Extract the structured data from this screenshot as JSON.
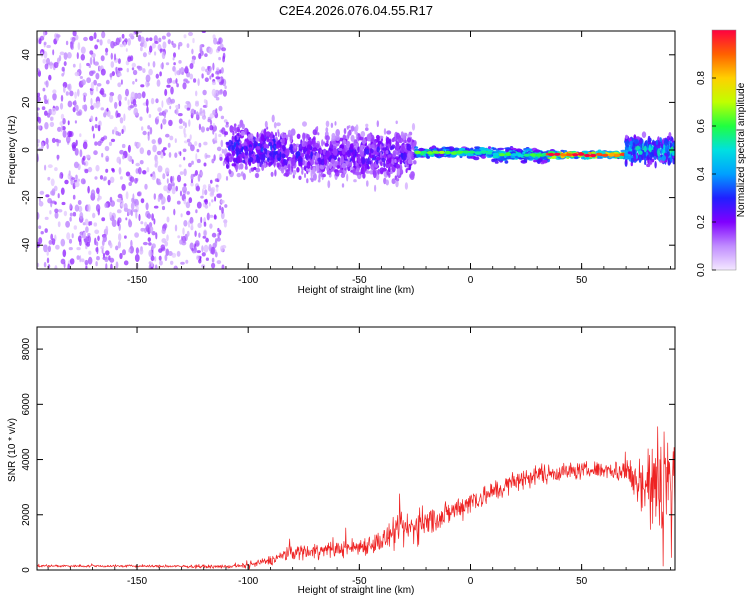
{
  "figure": {
    "title": "C2E4.2026.076.04.55.R17"
  },
  "chart_data": [
    {
      "type": "heatmap",
      "name": "spectrogram",
      "xlabel": "Height of straight line (km)",
      "ylabel": "Frequency (Hz)",
      "xlim": [
        -195,
        92
      ],
      "ylim": [
        -50,
        50
      ],
      "x_ticks": [
        "-150",
        "-100",
        "-50",
        "0",
        "50"
      ],
      "x_tick_values": [
        -150,
        -100,
        -50,
        0,
        50
      ],
      "y_ticks": [
        "40",
        "20",
        "0",
        "-20",
        "-40"
      ],
      "y_tick_values": [
        40,
        20,
        0,
        -20,
        -40
      ],
      "colorbar": {
        "label": "Normalized spectral amplitude",
        "range": [
          0,
          1
        ],
        "ticks": [
          "0.0",
          "0.2",
          "0.4",
          "0.6",
          "0.8"
        ],
        "tick_values": [
          0.0,
          0.2,
          0.4,
          0.6,
          0.8
        ],
        "colors": [
          "#f4e8ff",
          "#c08cff",
          "#8000ff",
          "#2020ff",
          "#00a0ff",
          "#00e0e0",
          "#20ff40",
          "#c0ff00",
          "#ffd000",
          "#ff6000",
          "#ff0040"
        ]
      },
      "segments": [
        {
          "x": [
            -195,
            -110
          ],
          "f_center": 0,
          "f_halfwidth": 50,
          "amplitude": 0.12
        },
        {
          "x": [
            -110,
            -85
          ],
          "f_center": 0,
          "f_halfwidth": 14,
          "amplitude": 0.3
        },
        {
          "x": [
            -85,
            -25
          ],
          "f_center": -2,
          "f_halfwidth": 15,
          "amplitude": 0.25
        },
        {
          "x": [
            -25,
            10
          ],
          "f_center": -1,
          "f_halfwidth": 3,
          "amplitude": 0.6
        },
        {
          "x": [
            10,
            35
          ],
          "f_center": -2,
          "f_halfwidth": 4,
          "amplitude": 0.55
        },
        {
          "x": [
            35,
            70
          ],
          "f_center": -2,
          "f_halfwidth": 2,
          "amplitude": 0.95
        },
        {
          "x": [
            70,
            92
          ],
          "f_center": 0,
          "f_halfwidth": 8,
          "amplitude": 0.5
        }
      ],
      "grid": false
    },
    {
      "type": "line",
      "name": "snr",
      "xlabel": "Height of straight line (km)",
      "ylabel": "SNR (10 * v/v)",
      "xlim": [
        -195,
        92
      ],
      "ylim": [
        0,
        8800
      ],
      "x_ticks": [
        "-150",
        "-100",
        "-50",
        "0",
        "50"
      ],
      "x_tick_values": [
        -150,
        -100,
        -50,
        0,
        50
      ],
      "y_ticks": [
        "0",
        "2000",
        "4000",
        "6000",
        "8000"
      ],
      "y_tick_values": [
        0,
        2000,
        4000,
        6000,
        8000
      ],
      "color": "#ee2222",
      "envelope_x": [
        -195,
        -150,
        -110,
        -100,
        -90,
        -80,
        -70,
        -60,
        -50,
        -40,
        -30,
        -20,
        -10,
        0,
        10,
        20,
        30,
        40,
        50,
        60,
        70,
        75,
        80,
        85,
        90,
        92
      ],
      "envelope_mean": [
        150,
        140,
        120,
        160,
        350,
        650,
        700,
        750,
        850,
        1050,
        1450,
        1700,
        2050,
        2500,
        2800,
        3200,
        3450,
        3550,
        3600,
        3650,
        3550,
        3250,
        3050,
        2900,
        3000,
        3000
      ],
      "envelope_spread": [
        50,
        50,
        60,
        100,
        180,
        300,
        300,
        300,
        350,
        450,
        700,
        600,
        450,
        500,
        400,
        420,
        380,
        350,
        320,
        320,
        500,
        1000,
        1800,
        2500,
        2600,
        2600
      ],
      "grid": false
    }
  ]
}
